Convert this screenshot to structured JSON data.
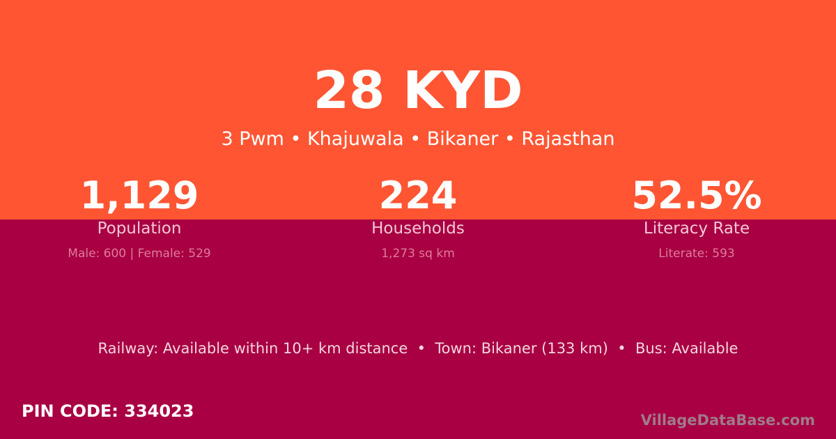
{
  "header": {
    "title": "28 KYD",
    "subtitle": "3 Pwm • Khajuwala • Bikaner • Rajasthan"
  },
  "stats": [
    {
      "value": "1,129",
      "label": "Population",
      "sub": "Male: 600 | Female: 529"
    },
    {
      "value": "224",
      "label": "Households",
      "sub": "1,273 sq km"
    },
    {
      "value": "52.5%",
      "label": "Literacy Rate",
      "sub": "Literate: 593"
    }
  ],
  "facts": "Railway: Available within 10+ km distance  •  Town: Bikaner (133 km)  •  Bus: Available",
  "pin": "PIN CODE: 334023",
  "brand": "VillageDataBase.com",
  "colors": {
    "top": "#ff5533",
    "bottom": "#a80042"
  }
}
